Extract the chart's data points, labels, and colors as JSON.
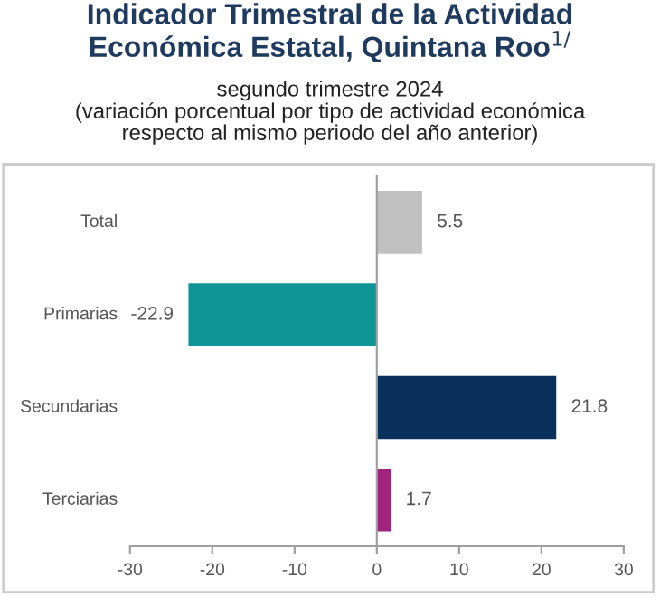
{
  "chart_data": {
    "type": "bar",
    "orientation": "horizontal",
    "title": "Indicador Trimestral de la Actividad\nEconómica Estatal, Quintana Roo$^{1/}$",
    "subtitle": "segundo trimestre 2024\n(variación porcentual por tipo de actividad económica\nrespecto al mismo periodo del año anterior)",
    "categories": [
      "Total",
      "Primarias",
      "Secundarias",
      "Terciarias"
    ],
    "values": [
      5.5,
      -22.9,
      21.8,
      1.7
    ],
    "colors": [
      "#c0c0c0",
      "#0e9696",
      "#08305a",
      "#a0237e"
    ],
    "data_labels": true,
    "xlim": [
      -30,
      30
    ],
    "xticks": [
      -30,
      -20,
      -10,
      0,
      10,
      20,
      30
    ]
  }
}
